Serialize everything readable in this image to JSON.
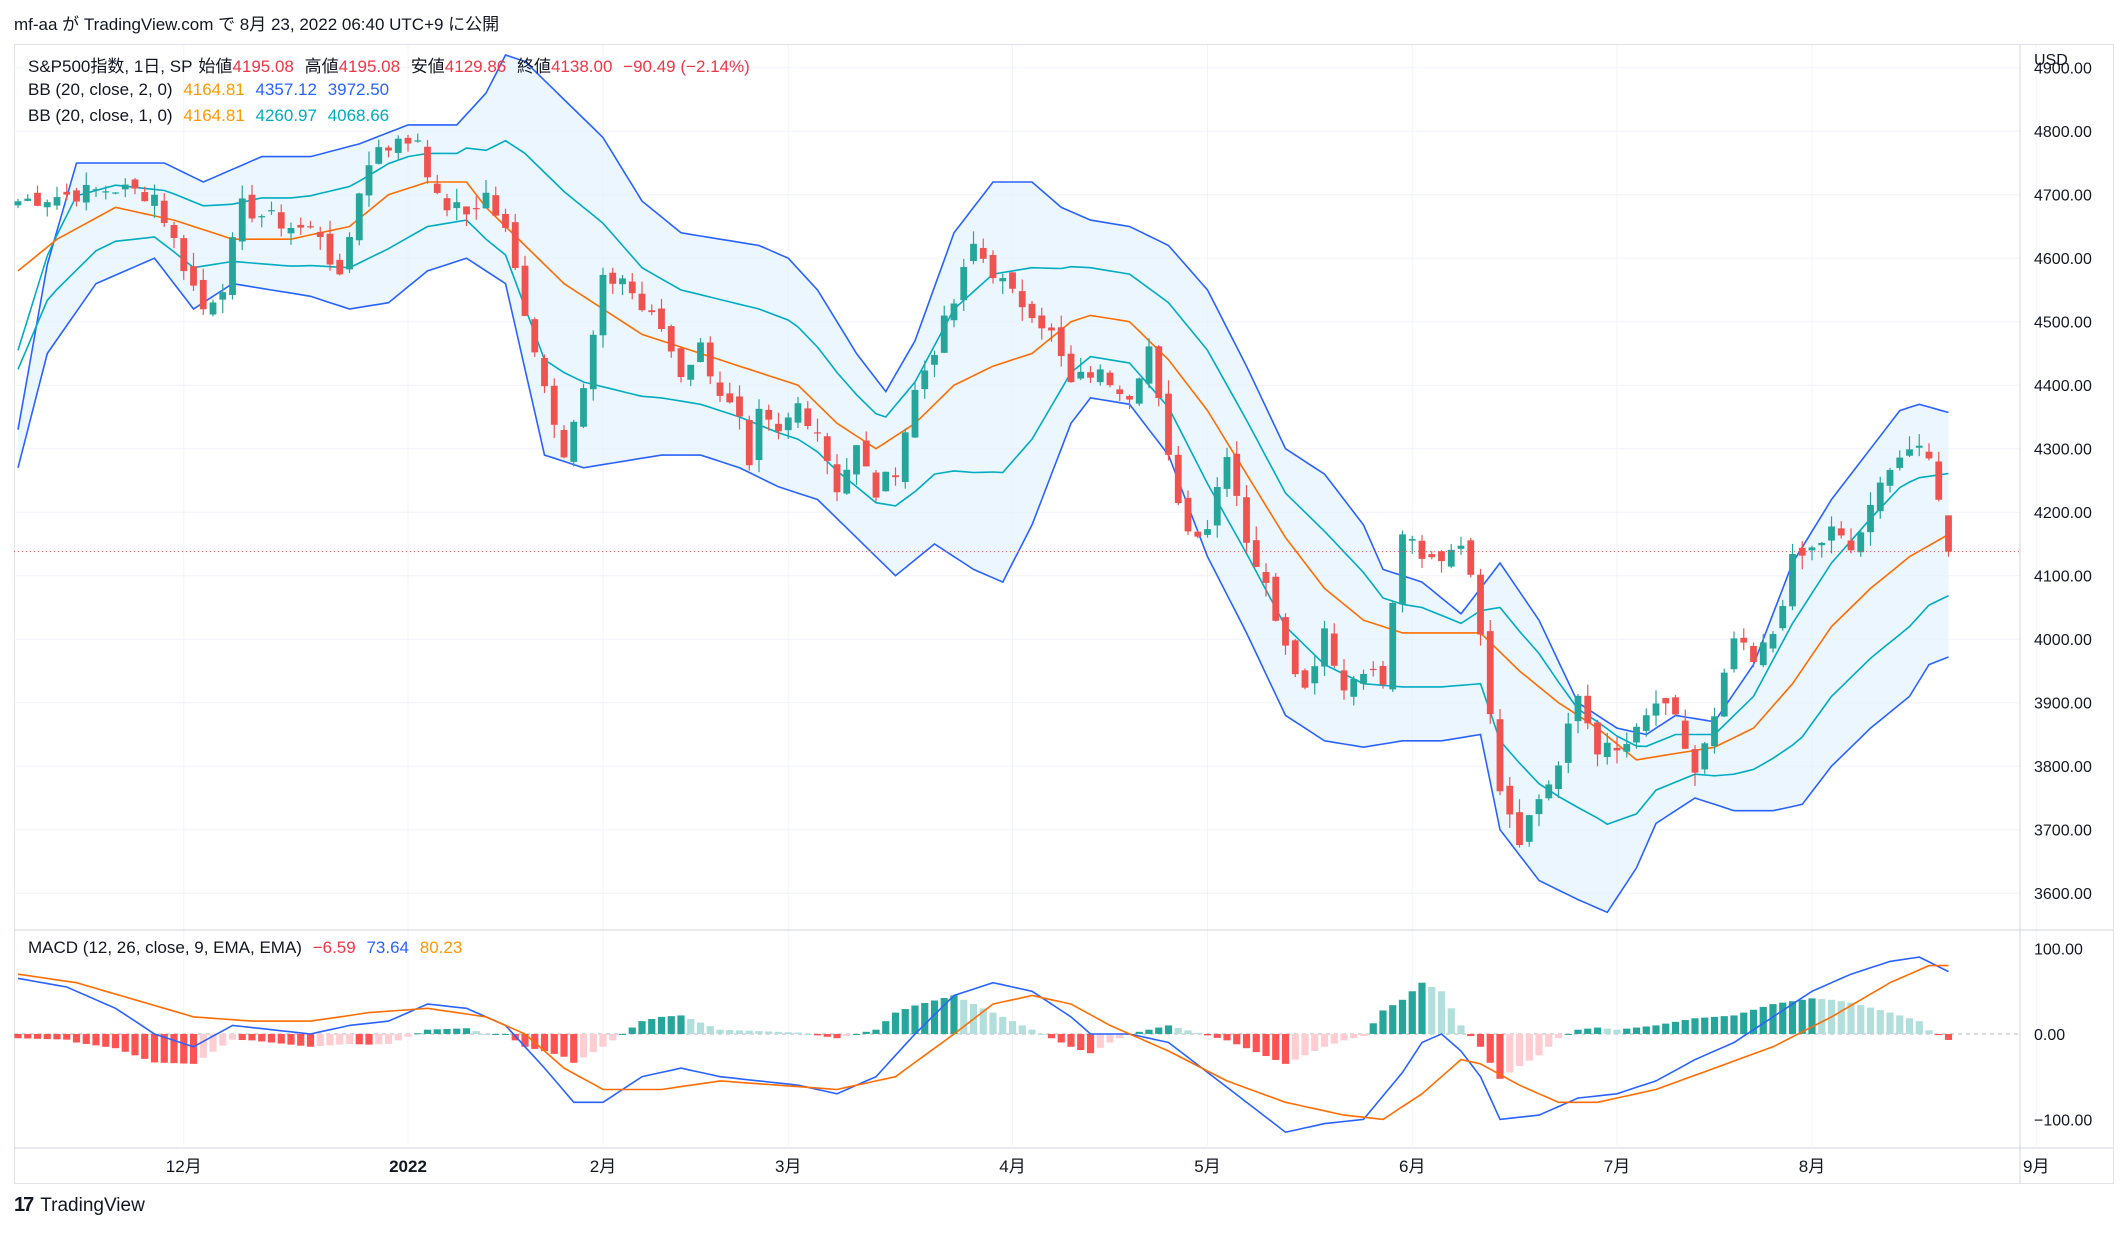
{
  "header": {
    "caption": "mf-aa が TradingView.com で 8月 23, 2022 06:40 UTC+9 に公開"
  },
  "legend": {
    "symbol": "S&P500指数, 1日, SP",
    "open_label": "始値",
    "open": "4195.08",
    "high_label": "高値",
    "high": "4195.08",
    "low_label": "安値",
    "low": "4129.86",
    "close_label": "終値",
    "close": "4138.00",
    "change": "−90.49 (−2.14%)",
    "bb2_label": "BB (20, close, 2, 0)",
    "bb2_basis": "4164.81",
    "bb2_upper": "4357.12",
    "bb2_lower": "3972.50",
    "bb1_label": "BB (20, close, 1, 0)",
    "bb1_basis": "4164.81",
    "bb1_upper": "4260.97",
    "bb1_lower": "4068.66",
    "macd_label": "MACD (12, 26, close, 9, EMA, EMA)",
    "macd_hist": "−6.59",
    "macd_line": "73.64",
    "macd_signal": "80.23"
  },
  "axis": {
    "currency": "USD"
  },
  "footer": {
    "brand": "TradingView",
    "logo": "17"
  },
  "colors": {
    "up": "#26a69a",
    "down": "#ef5350",
    "basis": "#ff6d00",
    "bb2": "#2962ff",
    "bb1": "#00acc1",
    "fill": "#e3f2fd",
    "macd": "#2962ff",
    "signal": "#ff6d00"
  },
  "chart_data": {
    "type": "candlestick",
    "price_axis": {
      "min": 3550,
      "max": 4920,
      "ticks": [
        3600,
        3700,
        3800,
        3900,
        4000,
        4100,
        4200,
        4300,
        4400,
        4500,
        4600,
        4700,
        4800,
        4900
      ],
      "tick_labels": [
        "3600.00",
        "3700.00",
        "3800.00",
        "3900.00",
        "4000.00",
        "4100.00",
        "4200.00",
        "4300.00",
        "4400.00",
        "4500.00",
        "4600.00",
        "4700.00",
        "4800.00",
        "4900.00"
      ]
    },
    "macd_axis": {
      "min": -130,
      "max": 110,
      "ticks": [
        -100,
        0,
        100
      ],
      "tick_labels": [
        "−100.00",
        "0.00",
        "100.00"
      ]
    },
    "x_axis": {
      "labels": [
        {
          "label": "12月",
          "index": 17
        },
        {
          "label": "2022",
          "index": 40
        },
        {
          "label": "2月",
          "index": 60
        },
        {
          "label": "3月",
          "index": 79
        },
        {
          "label": "4月",
          "index": 102
        },
        {
          "label": "5月",
          "index": 122
        },
        {
          "label": "6月",
          "index": 143
        },
        {
          "label": "7月",
          "index": 164
        },
        {
          "label": "8月",
          "index": 184
        },
        {
          "label": "9月",
          "index": 207
        }
      ]
    },
    "last_close": 4138.0,
    "anchors": [
      [
        0,
        4690
      ],
      [
        5,
        4700
      ],
      [
        10,
        4710
      ],
      [
        14,
        4700
      ],
      [
        17,
        4590
      ],
      [
        19,
        4520
      ],
      [
        21,
        4560
      ],
      [
        23,
        4680
      ],
      [
        28,
        4650
      ],
      [
        31,
        4640
      ],
      [
        33,
        4560
      ],
      [
        35,
        4710
      ],
      [
        37,
        4780
      ],
      [
        39,
        4780
      ],
      [
        41,
        4790
      ],
      [
        43,
        4690
      ],
      [
        46,
        4670
      ],
      [
        48,
        4700
      ],
      [
        50,
        4640
      ],
      [
        52,
        4520
      ],
      [
        54,
        4400
      ],
      [
        56,
        4300
      ],
      [
        58,
        4390
      ],
      [
        60,
        4560
      ],
      [
        62,
        4570
      ],
      [
        64,
        4520
      ],
      [
        66,
        4490
      ],
      [
        68,
        4420
      ],
      [
        70,
        4460
      ],
      [
        72,
        4390
      ],
      [
        74,
        4340
      ],
      [
        75,
        4260
      ],
      [
        76,
        4350
      ],
      [
        78,
        4320
      ],
      [
        80,
        4370
      ],
      [
        82,
        4330
      ],
      [
        84,
        4240
      ],
      [
        86,
        4300
      ],
      [
        88,
        4230
      ],
      [
        90,
        4270
      ],
      [
        92,
        4390
      ],
      [
        94,
        4460
      ],
      [
        96,
        4530
      ],
      [
        98,
        4620
      ],
      [
        100,
        4580
      ],
      [
        102,
        4540
      ],
      [
        104,
        4520
      ],
      [
        106,
        4480
      ],
      [
        108,
        4400
      ],
      [
        110,
        4420
      ],
      [
        112,
        4410
      ],
      [
        114,
        4390
      ],
      [
        116,
        4460
      ],
      [
        118,
        4280
      ],
      [
        120,
        4170
      ],
      [
        122,
        4180
      ],
      [
        124,
        4300
      ],
      [
        126,
        4160
      ],
      [
        128,
        4080
      ],
      [
        130,
        4000
      ],
      [
        132,
        3920
      ],
      [
        134,
        4020
      ],
      [
        136,
        3920
      ],
      [
        138,
        3960
      ],
      [
        140,
        3930
      ],
      [
        142,
        4170
      ],
      [
        144,
        4120
      ],
      [
        146,
        4130
      ],
      [
        148,
        4160
      ],
      [
        150,
        4020
      ],
      [
        152,
        3770
      ],
      [
        154,
        3690
      ],
      [
        156,
        3750
      ],
      [
        158,
        3800
      ],
      [
        160,
        3910
      ],
      [
        162,
        3830
      ],
      [
        164,
        3820
      ],
      [
        166,
        3850
      ],
      [
        168,
        3900
      ],
      [
        170,
        3870
      ],
      [
        172,
        3790
      ],
      [
        174,
        3870
      ],
      [
        176,
        4000
      ],
      [
        178,
        3960
      ],
      [
        180,
        4010
      ],
      [
        182,
        4120
      ],
      [
        184,
        4140
      ],
      [
        186,
        4170
      ],
      [
        188,
        4140
      ],
      [
        190,
        4200
      ],
      [
        192,
        4280
      ],
      [
        194,
        4300
      ],
      [
        196,
        4280
      ],
      [
        197,
        4230
      ],
      [
        198,
        4138
      ]
    ],
    "bb_upper_anchors": [
      [
        0,
        4330
      ],
      [
        3,
        4590
      ],
      [
        6,
        4750
      ],
      [
        15,
        4750
      ],
      [
        19,
        4720
      ],
      [
        25,
        4760
      ],
      [
        30,
        4760
      ],
      [
        35,
        4780
      ],
      [
        40,
        4810
      ],
      [
        45,
        4810
      ],
      [
        48,
        4860
      ],
      [
        50,
        4920
      ],
      [
        52,
        4910
      ],
      [
        56,
        4850
      ],
      [
        60,
        4790
      ],
      [
        64,
        4690
      ],
      [
        68,
        4640
      ],
      [
        72,
        4630
      ],
      [
        76,
        4620
      ],
      [
        79,
        4600
      ],
      [
        82,
        4550
      ],
      [
        86,
        4450
      ],
      [
        89,
        4390
      ],
      [
        92,
        4470
      ],
      [
        96,
        4640
      ],
      [
        100,
        4720
      ],
      [
        104,
        4720
      ],
      [
        107,
        4680
      ],
      [
        110,
        4660
      ],
      [
        114,
        4650
      ],
      [
        118,
        4620
      ],
      [
        122,
        4550
      ],
      [
        126,
        4430
      ],
      [
        130,
        4300
      ],
      [
        134,
        4260
      ],
      [
        138,
        4180
      ],
      [
        140,
        4110
      ],
      [
        144,
        4090
      ],
      [
        148,
        4040
      ],
      [
        152,
        4120
      ],
      [
        156,
        4030
      ],
      [
        160,
        3900
      ],
      [
        164,
        3860
      ],
      [
        167,
        3850
      ],
      [
        170,
        3880
      ],
      [
        174,
        3870
      ],
      [
        178,
        3960
      ],
      [
        182,
        4120
      ],
      [
        186,
        4220
      ],
      [
        190,
        4300
      ],
      [
        193,
        4360
      ],
      [
        195,
        4370
      ],
      [
        198,
        4357
      ]
    ],
    "bb_lower_anchors": [
      [
        0,
        4270
      ],
      [
        3,
        4450
      ],
      [
        8,
        4560
      ],
      [
        14,
        4600
      ],
      [
        18,
        4520
      ],
      [
        22,
        4560
      ],
      [
        30,
        4540
      ],
      [
        34,
        4520
      ],
      [
        38,
        4530
      ],
      [
        42,
        4580
      ],
      [
        46,
        4600
      ],
      [
        50,
        4560
      ],
      [
        54,
        4290
      ],
      [
        58,
        4270
      ],
      [
        62,
        4280
      ],
      [
        66,
        4290
      ],
      [
        70,
        4290
      ],
      [
        74,
        4270
      ],
      [
        78,
        4240
      ],
      [
        82,
        4220
      ],
      [
        86,
        4160
      ],
      [
        90,
        4100
      ],
      [
        94,
        4150
      ],
      [
        98,
        4110
      ],
      [
        101,
        4090
      ],
      [
        104,
        4180
      ],
      [
        108,
        4340
      ],
      [
        110,
        4380
      ],
      [
        114,
        4370
      ],
      [
        118,
        4290
      ],
      [
        122,
        4130
      ],
      [
        126,
        4010
      ],
      [
        130,
        3880
      ],
      [
        134,
        3840
      ],
      [
        138,
        3830
      ],
      [
        142,
        3840
      ],
      [
        146,
        3840
      ],
      [
        150,
        3850
      ],
      [
        152,
        3700
      ],
      [
        156,
        3620
      ],
      [
        160,
        3590
      ],
      [
        163,
        3570
      ],
      [
        166,
        3640
      ],
      [
        168,
        3710
      ],
      [
        172,
        3750
      ],
      [
        176,
        3730
      ],
      [
        180,
        3730
      ],
      [
        183,
        3740
      ],
      [
        186,
        3800
      ],
      [
        190,
        3860
      ],
      [
        194,
        3910
      ],
      [
        196,
        3960
      ],
      [
        198,
        3972
      ]
    ],
    "bb_basis_anchors": [
      [
        0,
        4580
      ],
      [
        4,
        4630
      ],
      [
        10,
        4680
      ],
      [
        16,
        4660
      ],
      [
        22,
        4630
      ],
      [
        28,
        4630
      ],
      [
        34,
        4650
      ],
      [
        38,
        4700
      ],
      [
        42,
        4720
      ],
      [
        46,
        4720
      ],
      [
        48,
        4680
      ],
      [
        52,
        4620
      ],
      [
        56,
        4560
      ],
      [
        60,
        4520
      ],
      [
        64,
        4480
      ],
      [
        68,
        4460
      ],
      [
        72,
        4440
      ],
      [
        76,
        4420
      ],
      [
        80,
        4400
      ],
      [
        84,
        4340
      ],
      [
        88,
        4300
      ],
      [
        92,
        4340
      ],
      [
        96,
        4400
      ],
      [
        100,
        4430
      ],
      [
        104,
        4450
      ],
      [
        108,
        4500
      ],
      [
        110,
        4510
      ],
      [
        114,
        4500
      ],
      [
        118,
        4440
      ],
      [
        122,
        4360
      ],
      [
        126,
        4260
      ],
      [
        130,
        4160
      ],
      [
        134,
        4080
      ],
      [
        138,
        4030
      ],
      [
        142,
        4010
      ],
      [
        146,
        4010
      ],
      [
        150,
        4010
      ],
      [
        154,
        3950
      ],
      [
        158,
        3900
      ],
      [
        162,
        3860
      ],
      [
        166,
        3810
      ],
      [
        170,
        3820
      ],
      [
        174,
        3830
      ],
      [
        178,
        3860
      ],
      [
        182,
        3930
      ],
      [
        186,
        4020
      ],
      [
        190,
        4080
      ],
      [
        194,
        4130
      ],
      [
        198,
        4165
      ]
    ],
    "macd_anchors": [
      [
        0,
        65
      ],
      [
        5,
        55
      ],
      [
        10,
        30
      ],
      [
        14,
        0
      ],
      [
        18,
        -15
      ],
      [
        22,
        10
      ],
      [
        26,
        5
      ],
      [
        30,
        0
      ],
      [
        34,
        10
      ],
      [
        38,
        15
      ],
      [
        42,
        35
      ],
      [
        46,
        30
      ],
      [
        50,
        10
      ],
      [
        54,
        -40
      ],
      [
        57,
        -80
      ],
      [
        60,
        -80
      ],
      [
        64,
        -50
      ],
      [
        68,
        -40
      ],
      [
        72,
        -50
      ],
      [
        76,
        -55
      ],
      [
        80,
        -60
      ],
      [
        84,
        -70
      ],
      [
        88,
        -50
      ],
      [
        92,
        0
      ],
      [
        96,
        45
      ],
      [
        100,
        60
      ],
      [
        104,
        50
      ],
      [
        108,
        20
      ],
      [
        110,
        0
      ],
      [
        114,
        0
      ],
      [
        118,
        -10
      ],
      [
        122,
        -45
      ],
      [
        126,
        -80
      ],
      [
        130,
        -115
      ],
      [
        134,
        -105
      ],
      [
        138,
        -100
      ],
      [
        142,
        -45
      ],
      [
        144,
        -10
      ],
      [
        146,
        0
      ],
      [
        148,
        -20
      ],
      [
        150,
        -50
      ],
      [
        152,
        -100
      ],
      [
        156,
        -95
      ],
      [
        160,
        -75
      ],
      [
        164,
        -70
      ],
      [
        168,
        -55
      ],
      [
        172,
        -30
      ],
      [
        176,
        -10
      ],
      [
        180,
        20
      ],
      [
        184,
        50
      ],
      [
        188,
        70
      ],
      [
        192,
        85
      ],
      [
        195,
        90
      ],
      [
        198,
        73
      ]
    ],
    "signal_anchors": [
      [
        0,
        70
      ],
      [
        6,
        60
      ],
      [
        12,
        40
      ],
      [
        18,
        20
      ],
      [
        24,
        15
      ],
      [
        30,
        15
      ],
      [
        36,
        25
      ],
      [
        42,
        30
      ],
      [
        48,
        20
      ],
      [
        52,
        0
      ],
      [
        56,
        -40
      ],
      [
        60,
        -65
      ],
      [
        66,
        -65
      ],
      [
        72,
        -55
      ],
      [
        78,
        -60
      ],
      [
        84,
        -65
      ],
      [
        90,
        -50
      ],
      [
        96,
        0
      ],
      [
        100,
        35
      ],
      [
        104,
        45
      ],
      [
        108,
        35
      ],
      [
        112,
        10
      ],
      [
        118,
        -20
      ],
      [
        124,
        -55
      ],
      [
        130,
        -80
      ],
      [
        136,
        -95
      ],
      [
        140,
        -100
      ],
      [
        144,
        -70
      ],
      [
        148,
        -30
      ],
      [
        150,
        -35
      ],
      [
        154,
        -60
      ],
      [
        158,
        -80
      ],
      [
        162,
        -80
      ],
      [
        168,
        -65
      ],
      [
        174,
        -40
      ],
      [
        180,
        -15
      ],
      [
        186,
        20
      ],
      [
        192,
        60
      ],
      [
        196,
        80
      ],
      [
        198,
        80
      ]
    ]
  }
}
